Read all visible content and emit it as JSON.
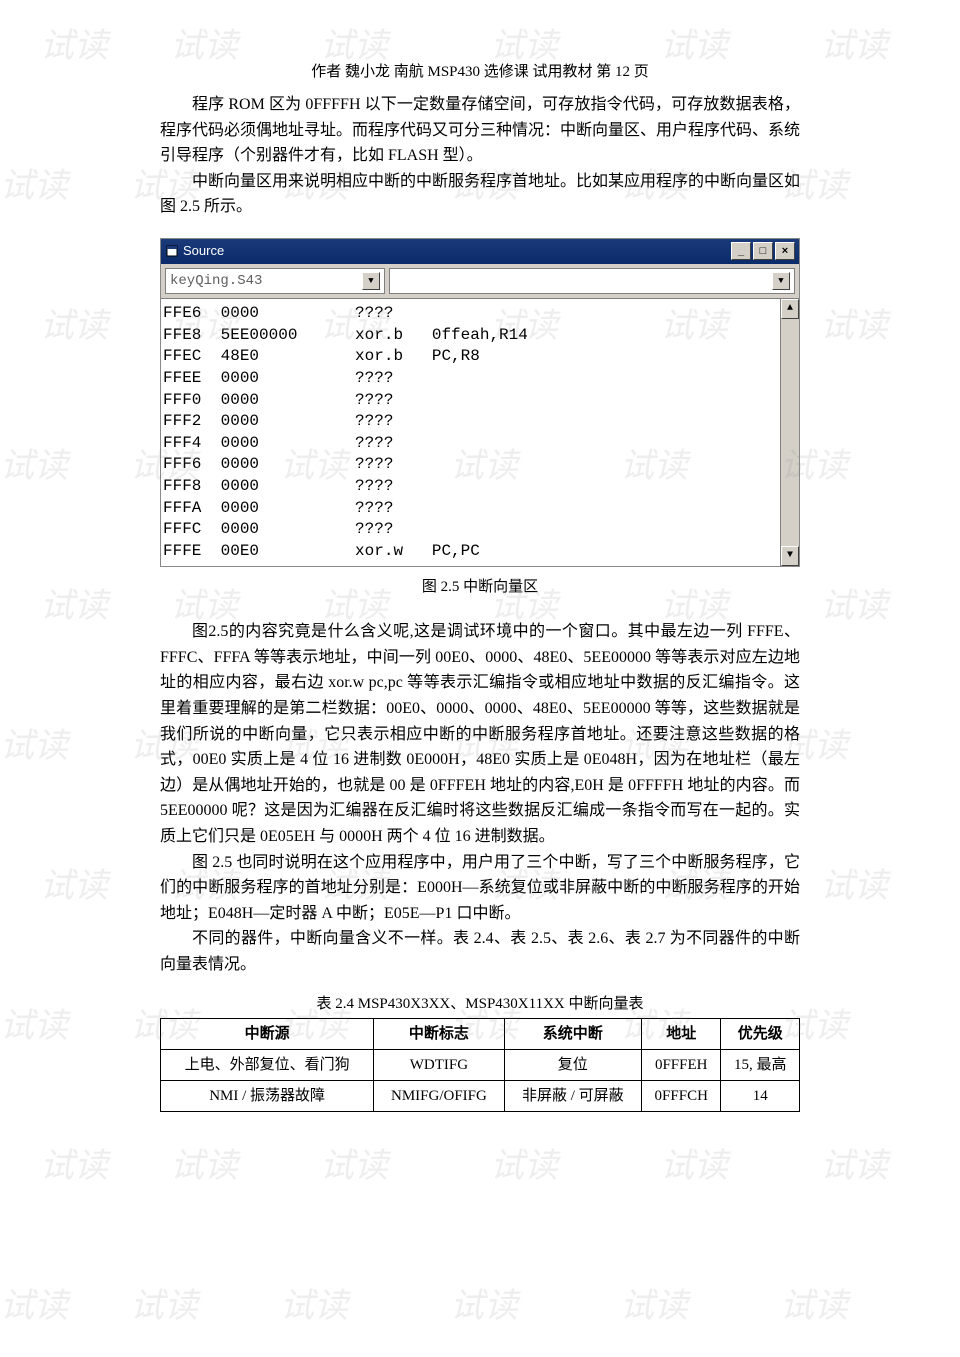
{
  "header": "作者   魏小龙   南航 MSP430 选修课 试用教材   第   12   页",
  "p1": "程序 ROM 区为 0FFFFH 以下一定数量存储空间，可存放指令代码，可存放数据表格，程序代码必须偶地址寻址。而程序代码又可分三种情况：中断向量区、用户程序代码、系统引导程序（个别器件才有，比如 FLASH 型）。",
  "p2": "中断向量区用来说明相应中断的中断服务程序首地址。比如某应用程序的中断向量区如图 2.5 所示。",
  "source_window": {
    "title": "Source",
    "file_dropdown": "keyQing.S43",
    "lines": [
      {
        "addr": "FFE6",
        "code": "0000",
        "mnem": "????",
        "ops": ""
      },
      {
        "addr": "FFE8",
        "code": "5EE00000",
        "mnem": "xor.b",
        "ops": "0ffeah,R14"
      },
      {
        "addr": "FFEC",
        "code": "48E0",
        "mnem": "xor.b",
        "ops": "PC,R8"
      },
      {
        "addr": "FFEE",
        "code": "0000",
        "mnem": "????",
        "ops": ""
      },
      {
        "addr": "FFF0",
        "code": "0000",
        "mnem": "????",
        "ops": ""
      },
      {
        "addr": "FFF2",
        "code": "0000",
        "mnem": "????",
        "ops": ""
      },
      {
        "addr": "FFF4",
        "code": "0000",
        "mnem": "????",
        "ops": ""
      },
      {
        "addr": "FFF6",
        "code": "0000",
        "mnem": "????",
        "ops": ""
      },
      {
        "addr": "FFF8",
        "code": "0000",
        "mnem": "????",
        "ops": ""
      },
      {
        "addr": "FFFA",
        "code": "0000",
        "mnem": "????",
        "ops": ""
      },
      {
        "addr": "FFFC",
        "code": "0000",
        "mnem": "????",
        "ops": ""
      },
      {
        "addr": "FFFE",
        "code": "00E0",
        "mnem": "xor.w",
        "ops": "PC,PC"
      }
    ]
  },
  "fig_caption": "图 2.5    中断向量区",
  "p3": "图2.5的内容究竟是什么含义呢,这是调试环境中的一个窗口。其中最左边一列 FFFE、FFFC、FFFA 等等表示地址，中间一列 00E0、0000、48E0、5EE00000 等等表示对应左边地址的相应内容，最右边 xor.w  pc,pc 等等表示汇编指令或相应地址中数据的反汇编指令。这里着重要理解的是第二栏数据：00E0、0000、0000、48E0、5EE00000 等等，这些数据就是我们所说的中断向量，它只表示相应中断的中断服务程序首地址。还要注意这些数据的格式，00E0 实质上是 4 位 16 进制数 0E000H，48E0 实质上是 0E048H，因为在地址栏（最左边）是从偶地址开始的，也就是 00 是 0FFFEH 地址的内容,E0H 是 0FFFFH 地址的内容。而 5EE00000 呢？这是因为汇编器在反汇编时将这些数据反汇编成一条指令而写在一起的。实质上它们只是 0E05EH 与 0000H 两个 4 位 16 进制数据。",
  "p4": "图 2.5 也同时说明在这个应用程序中，用户用了三个中断，写了三个中断服务程序，它们的中断服务程序的首地址分别是：E000H—系统复位或非屏蔽中断的中断服务程序的开始地址；E048H—定时器 A 中断；E05E—P1 口中断。",
  "p5": "不同的器件，中断向量含义不一样。表 2.4、表 2.5、表 2.6、表 2.7 为不同器件的中断向量表情况。",
  "table_caption": "表 2.4      MSP430X3XX、MSP430X11XX 中断向量表",
  "table": {
    "headers": [
      "中断源",
      "中断标志",
      "系统中断",
      "地址",
      "优先级"
    ],
    "rows": [
      [
        "上电、外部复位、看门狗",
        "WDTIFG",
        "复位",
        "0FFFEH",
        "15,  最高"
      ],
      [
        "NMI / 振荡器故障",
        "NMIFG/OFIFG",
        "非屏蔽 / 可屏蔽",
        "0FFFCH",
        "14"
      ]
    ]
  },
  "watermark_text": "试读",
  "min_btn": "_",
  "max_btn": "□",
  "close_btn": "×",
  "scroll_up": "▲",
  "scroll_down": "▼",
  "dd_arrow": "▼"
}
